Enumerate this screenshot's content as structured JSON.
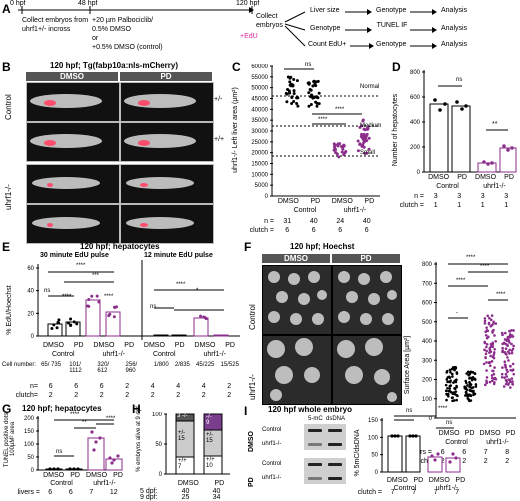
{
  "panel_A": {
    "letter": "A",
    "timepoints": [
      "0 hpf",
      "48 hpf",
      "120 hpf"
    ],
    "step1": "Collect embryos from uhrf1+/- incross",
    "step2_lines": [
      "+20 µm Palbociclib/",
      "0.5% DMSO",
      "or",
      "+0.5% DMSO (control)"
    ],
    "step3": "Collect embryos",
    "edu": "+EdU",
    "workflows": [
      {
        "a": "Liver size",
        "b": "Genotype",
        "c": "Analysis"
      },
      {
        "a": "Genotype",
        "b": "TUNEL IF",
        "c": "Analysis"
      },
      {
        "a": "Count EdU+",
        "b": "Genotype",
        "c": "Analysis"
      }
    ]
  },
  "panel_B": {
    "letter": "B",
    "title": "120 hpf; Tg(fabp10a:nls-mCherry)",
    "col_headers": [
      "DMSO",
      "PD"
    ],
    "row_labels": [
      "Control",
      "uhrf1-/-"
    ],
    "genotype_tags": [
      "+/-",
      "+/+"
    ]
  },
  "panel_C": {
    "letter": "C",
    "ylabel": "uhrf1-/- Left liver area (µm²)",
    "yticks": [
      "60000",
      "55000",
      "50000",
      "45000",
      "40000",
      "35000",
      "30000",
      "25000",
      "20000",
      "15000",
      "10000",
      "5000",
      "0"
    ],
    "categories": [
      "DMSO",
      "PD",
      "DMSO",
      "PD"
    ],
    "groups": [
      "Control",
      "uhrf1-/-"
    ],
    "n_label": "n =",
    "n": [
      "31",
      "40",
      "24",
      "40"
    ],
    "clutch_label": "clutch =",
    "clutch": [
      "6",
      "6",
      "6",
      "6"
    ],
    "size_labels": [
      "Normal",
      "Medium",
      "Small"
    ],
    "sig": [
      "ns",
      "****",
      "****"
    ]
  },
  "panel_D": {
    "letter": "D",
    "ylabel": "Number of hepatocytes",
    "yticks": [
      "800",
      "600",
      "400",
      "200",
      "0"
    ],
    "categories": [
      "DMSO",
      "PD",
      "DMSO",
      "PD"
    ],
    "groups": [
      "Control",
      "uhrf1-/-"
    ],
    "n_label": "n =",
    "n": [
      "3",
      "3",
      "3",
      "3"
    ],
    "clutch_label": "clutch =",
    "clutch": [
      "1",
      "1",
      "1",
      "1"
    ],
    "sig": [
      "ns",
      "**"
    ]
  },
  "panel_E": {
    "letter": "E",
    "title": "120 hpf; hepatocytes",
    "sub1": "30 minute EdU pulse",
    "sub2": "12 minute EdU pulse",
    "ylabel": "% EdU/Hoechst",
    "yticks": [
      "60",
      "40",
      "20",
      "0"
    ],
    "categories": [
      "DMSO",
      "PD",
      "DMSO",
      "PD",
      "DMSO",
      "PD",
      "DMSO",
      "PD"
    ],
    "groups": [
      "Control",
      "uhrf1-/-",
      "Control",
      "uhrf1-/-"
    ],
    "cell_label": "Cell number:",
    "cells": [
      "65/ 735",
      "101/ 1112",
      "320/ 612",
      "256/ 960",
      "1/800",
      "2/835",
      "45/225",
      "15/525"
    ],
    "n_label": "n=",
    "n": [
      "6",
      "6",
      "6",
      "2",
      "4",
      "4",
      "4",
      "2"
    ],
    "clutch_label": "clutch=",
    "clutch": [
      "2",
      "2",
      "2",
      "2",
      "2",
      "2",
      "2",
      "2"
    ],
    "sig": [
      "****",
      "***",
      "ns",
      "****",
      "****",
      "ns",
      "****",
      "*",
      "ns",
      "****",
      "****"
    ]
  },
  "panel_F": {
    "letter": "F",
    "title": "120 hpf; Hoechst",
    "col_headers": [
      "DMSO",
      "PD"
    ],
    "row_labels": [
      "Control",
      "uhrf1-/-"
    ],
    "ylabel": "Surface Area [µm²]",
    "yticks": [
      "800",
      "700",
      "600",
      "500",
      "400",
      "300",
      "200",
      "100",
      "0"
    ],
    "categories": [
      "DMSO",
      "PD",
      "DMSO",
      "PD"
    ],
    "groups": [
      "Control",
      "uhrf1-/-"
    ],
    "livers_label": "livers =",
    "livers": [
      "6",
      "6",
      "7",
      "8"
    ],
    "clutch_label": "clutch=",
    "clutch": [
      "2",
      "2",
      "2",
      "2"
    ],
    "sig": [
      "****",
      "****",
      "****",
      "-",
      "****"
    ]
  },
  "panel_G": {
    "letter": "G",
    "title": "120 hpf; hepatocytes",
    "ylabel": "TUNEL positive dots/ 100µM² area",
    "yticks": [
      "200",
      "150",
      "100",
      "50",
      "0"
    ],
    "categories": [
      "DMSO",
      "PD",
      "DMSO",
      "PD"
    ],
    "groups": [
      "Control",
      "uhrf1-/-"
    ],
    "livers_label": "livers =",
    "livers": [
      "6",
      "6",
      "7",
      "12"
    ],
    "clutch_label": "clutch =",
    "clutch": [
      "2",
      "2",
      "2",
      "2"
    ],
    "sig": [
      "ns",
      "****",
      "**",
      "****"
    ]
  },
  "panel_H": {
    "letter": "H",
    "ylabel": "% embryos alive at 9 dpf",
    "yticks": [
      "100",
      "50",
      "0"
    ],
    "categories": [
      "DMSO",
      "PD"
    ],
    "stack_labels": [
      "-/-",
      "+/-",
      "+/+"
    ],
    "dmso_counts": [
      "3",
      "15",
      "7"
    ],
    "pd_counts": [
      "9",
      "15",
      "10"
    ],
    "row5_label": "5 dpf:",
    "row5": [
      "40",
      "40"
    ],
    "row9_label": "9 dpf:",
    "row9": [
      "25",
      "34"
    ]
  },
  "panel_I": {
    "letter": "I",
    "title": "120 hpf whole embryo",
    "gel_headers": [
      "5-mC",
      "dsDNA"
    ],
    "gel_rows": [
      "Control",
      "uhrf1-/-",
      "Control",
      "uhrf1-/-"
    ],
    "gel_groups": [
      "DMSO",
      "PD"
    ],
    "ylabel": "% 5mC/dsDNA",
    "yticks": [
      "150",
      "100",
      "50",
      "0"
    ],
    "categories": [
      "DMSO",
      "PD",
      "DMSO",
      "PD"
    ],
    "groups": [
      "Control",
      "uhrf1-/-"
    ],
    "clutch_label": "clutch =",
    "clutch": [
      "7",
      "7",
      "7",
      "7"
    ],
    "sig": [
      "ns",
      "****",
      "ns"
    ]
  },
  "colors": {
    "control": "#000000",
    "mutant": "#8b2e8b",
    "pd_bar": "#7a3e8f",
    "edu": "#d9269e"
  }
}
